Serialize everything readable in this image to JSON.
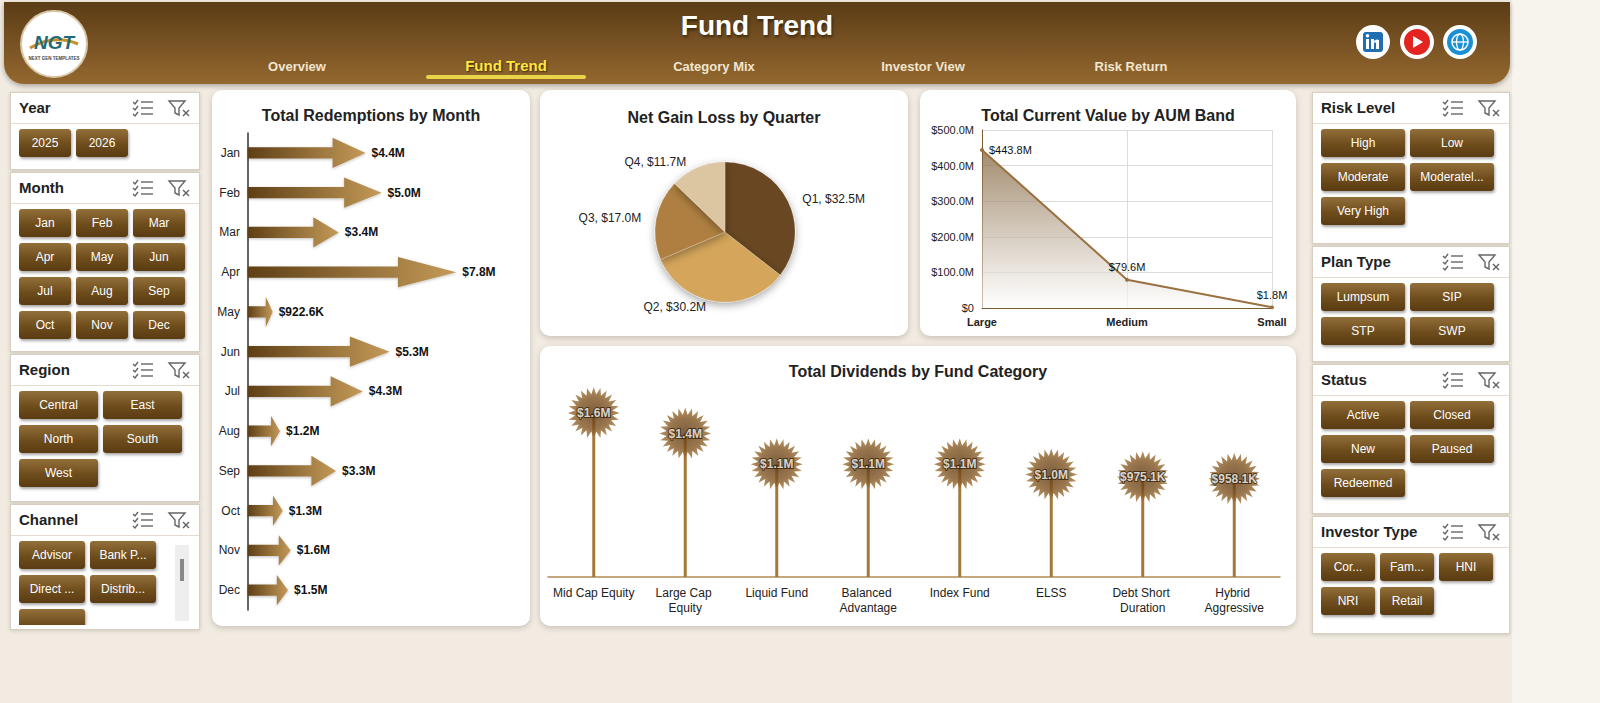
{
  "header": {
    "logo": "NGT",
    "logo_subtitle": "NEXT GEN TEMPLATES",
    "title": "Fund Trend",
    "nav": [
      "Overview",
      "Fund Trend",
      "Category Mix",
      "Investor View",
      "Risk Return"
    ],
    "active": "Fund Trend"
  },
  "slicers_left": [
    {
      "title": "Year",
      "items": [
        "2025",
        "2026"
      ]
    },
    {
      "title": "Month",
      "items": [
        "Jan",
        "Feb",
        "Mar",
        "Apr",
        "May",
        "Jun",
        "Jul",
        "Aug",
        "Sep",
        "Oct",
        "Nov",
        "Dec"
      ]
    },
    {
      "title": "Region",
      "items": [
        "Central",
        "East",
        "North",
        "South",
        "West"
      ]
    },
    {
      "title": "Channel",
      "items": [
        "Advisor",
        "Bank P...",
        "Direct ...",
        "Distrib..."
      ]
    }
  ],
  "slicers_right": [
    {
      "title": "Risk Level",
      "items": [
        "High",
        "Low",
        "Moderate",
        "Moderatel...",
        "Very High"
      ]
    },
    {
      "title": "Plan Type",
      "items": [
        "Lumpsum",
        "SIP",
        "STP",
        "SWP"
      ]
    },
    {
      "title": "Status",
      "items": [
        "Active",
        "Closed",
        "New",
        "Paused",
        "Redeemed"
      ]
    },
    {
      "title": "Investor Type",
      "items": [
        "Cor...",
        "Fam...",
        "HNI",
        "NRI",
        "Retail"
      ]
    }
  ],
  "chart_data": [
    {
      "type": "bar",
      "title": "Total Redemptions by Month",
      "orientation": "horizontal",
      "categories": [
        "Jan",
        "Feb",
        "Mar",
        "Apr",
        "May",
        "Jun",
        "Jul",
        "Aug",
        "Sep",
        "Oct",
        "Nov",
        "Dec"
      ],
      "values": [
        4400000,
        5000000,
        3400000,
        7800000,
        922600,
        5300000,
        4300000,
        1200000,
        3300000,
        1300000,
        1600000,
        1500000
      ],
      "value_labels": [
        "$4.4M",
        "$5.0M",
        "$3.4M",
        "$7.8M",
        "$922.6K",
        "$5.3M",
        "$4.3M",
        "$1.2M",
        "$3.3M",
        "$1.3M",
        "$1.6M",
        "$1.5M"
      ],
      "xlim": [
        0,
        10000000
      ],
      "data_labels": true,
      "tick_labels": "y",
      "grid": false,
      "marker": "arrow",
      "color": "#8a5f28"
    },
    {
      "type": "pie",
      "title": "Net Gain Loss by Quarter",
      "categories": [
        "Q1",
        "Q2",
        "Q3",
        "Q4"
      ],
      "values": [
        32500000,
        30200000,
        17000000,
        11700000
      ],
      "value_labels": [
        "Q1, $32.5M",
        "Q2, $30.2M",
        "Q3, $17.0M",
        "Q4, $11.7M"
      ],
      "colors": [
        "#684620",
        "#d4a55a",
        "#ae7f3f",
        "#dcc6a2"
      ],
      "data_labels": true
    },
    {
      "type": "area",
      "title": "Total Current Value by AUM Band",
      "categories": [
        "Large",
        "Medium",
        "Small"
      ],
      "values": [
        443800000,
        79600000,
        1800000
      ],
      "value_labels": [
        "$443.8M",
        "$79.6M",
        "$1.8M"
      ],
      "ylim": [
        0,
        500000000
      ],
      "yticks": [
        {
          "value": 0,
          "label": "$0"
        },
        {
          "value": 100000000,
          "label": "$100.0M"
        },
        {
          "value": 200000000,
          "label": "$200.0M"
        },
        {
          "value": 300000000,
          "label": "$300.0M"
        },
        {
          "value": 400000000,
          "label": "$400.0M"
        },
        {
          "value": 500000000,
          "label": "$500.0M"
        }
      ],
      "grid": true,
      "data_labels": true,
      "color": "#9a7040"
    },
    {
      "type": "lollipop",
      "title": "Total Dividends by Fund Category",
      "categories": [
        "Mid Cap Equity",
        "Large Cap Equity",
        "Liquid Fund",
        "Balanced Advantage",
        "Index Fund",
        "ELSS",
        "Debt Short Duration",
        "Hybrid Aggressive"
      ],
      "values": [
        1600000,
        1400000,
        1100000,
        1100000,
        1100000,
        1000000,
        975100,
        958100
      ],
      "value_labels": [
        "$1.6M",
        "$1.4M",
        "$1.1M",
        "$1.1M",
        "$1.1M",
        "$1.0M",
        "$975.1K",
        "$958.1K"
      ],
      "ylim": [
        0,
        2000000
      ],
      "data_labels": true,
      "tick_labels": "x",
      "grid": false,
      "marker": "starburst",
      "color": "#a5783a"
    }
  ]
}
